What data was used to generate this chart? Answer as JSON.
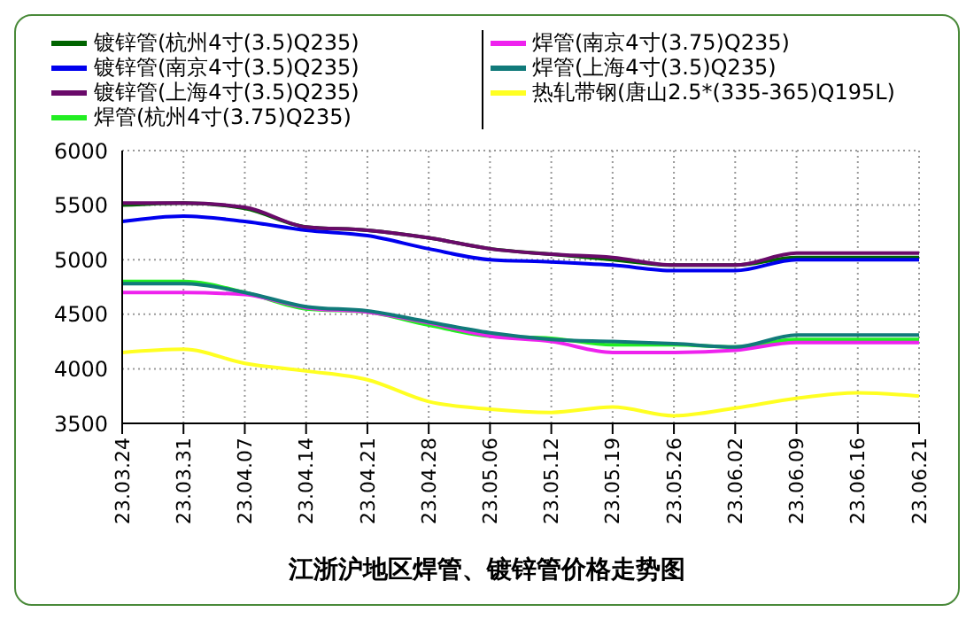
{
  "chart_data": {
    "type": "line",
    "title": "江浙沪地区焊管、镀锌管价格走势图",
    "categories": [
      "23.03.24",
      "23.03.31",
      "23.04.07",
      "23.04.14",
      "23.04.21",
      "23.04.28",
      "23.05.06",
      "23.05.12",
      "23.05.19",
      "23.05.26",
      "23.06.02",
      "23.06.09",
      "23.06.16",
      "23.06.21"
    ],
    "series": [
      {
        "name": "镀锌管(杭州4寸(3.5)Q235)",
        "color": "#006400",
        "values": [
          5500,
          5520,
          5470,
          5300,
          5270,
          5200,
          5100,
          5050,
          5000,
          4950,
          4950,
          5020,
          5020,
          5020
        ]
      },
      {
        "name": "镀锌管(南京4寸(3.5)Q235)",
        "color": "#0000ee",
        "values": [
          5350,
          5400,
          5350,
          5270,
          5220,
          5100,
          5000,
          4980,
          4950,
          4900,
          4900,
          5000,
          5000,
          5000
        ]
      },
      {
        "name": "镀锌管(上海4寸(3.5)Q235)",
        "color": "#6a0a6a",
        "values": [
          5520,
          5520,
          5480,
          5300,
          5270,
          5200,
          5100,
          5050,
          5020,
          4950,
          4950,
          5060,
          5060,
          5060
        ]
      },
      {
        "name": "焊管(杭州4寸(3.75)Q235)",
        "color": "#22ee22",
        "values": [
          4800,
          4800,
          4700,
          4550,
          4520,
          4400,
          4300,
          4280,
          4220,
          4220,
          4200,
          4270,
          4270,
          4270
        ]
      },
      {
        "name": "焊管(南京4寸(3.75)Q235)",
        "color": "#ee22ee",
        "values": [
          4700,
          4700,
          4680,
          4560,
          4520,
          4420,
          4300,
          4250,
          4150,
          4150,
          4170,
          4240,
          4240,
          4240
        ]
      },
      {
        "name": "焊管(上海4寸(3.5)Q235)",
        "color": "#117a7a",
        "values": [
          4780,
          4780,
          4700,
          4570,
          4530,
          4430,
          4330,
          4270,
          4250,
          4230,
          4200,
          4310,
          4310,
          4310
        ]
      },
      {
        "name": "热轧带钢(唐山2.5*(335-365)Q195L)",
        "color": "#ffff22",
        "values": [
          4150,
          4180,
          4050,
          3980,
          3900,
          3700,
          3630,
          3600,
          3650,
          3570,
          3640,
          3730,
          3780,
          3750
        ]
      }
    ],
    "ylim": [
      3500,
      6000
    ],
    "yticks": [
      3500,
      4000,
      4500,
      5000,
      5500,
      6000
    ],
    "grid": true,
    "legend": "top",
    "line_style": "solid",
    "marker": "none"
  }
}
